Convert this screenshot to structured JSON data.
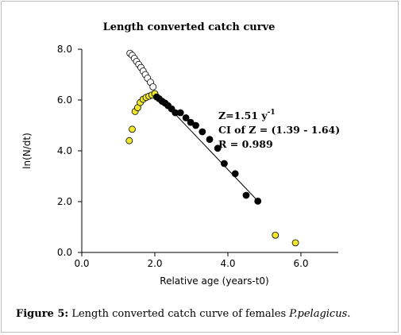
{
  "chart_data": {
    "type": "scatter",
    "title": "Length converted catch curve",
    "xlabel": "Relative age (years-t0)",
    "ylabel": "ln(N/dt)",
    "xlim": [
      0,
      7
    ],
    "ylim": [
      0,
      8
    ],
    "x_ticks": [
      "0.0",
      "2.0",
      "4.0",
      "6.0"
    ],
    "y_ticks": [
      "0.0",
      "2.0",
      "4.0",
      "6.0",
      "8.0"
    ],
    "grid": false,
    "series": [
      {
        "color": "#ffffff",
        "points": [
          [
            1.32,
            7.84
          ],
          [
            1.38,
            7.76
          ],
          [
            1.44,
            7.64
          ],
          [
            1.5,
            7.52
          ],
          [
            1.56,
            7.4
          ],
          [
            1.62,
            7.28
          ],
          [
            1.68,
            7.14
          ],
          [
            1.74,
            7.0
          ],
          [
            1.8,
            6.86
          ],
          [
            1.88,
            6.7
          ],
          [
            1.95,
            6.52
          ]
        ]
      },
      {
        "color": "#f0e62e",
        "points": [
          [
            1.3,
            4.4
          ],
          [
            1.38,
            4.85
          ],
          [
            1.46,
            5.55
          ],
          [
            1.53,
            5.7
          ],
          [
            1.6,
            5.9
          ],
          [
            1.68,
            6.03
          ],
          [
            1.76,
            6.1
          ],
          [
            1.84,
            6.15
          ],
          [
            1.92,
            6.2
          ],
          [
            2.0,
            6.25
          ],
          [
            5.3,
            0.68
          ],
          [
            5.85,
            0.38
          ]
        ]
      },
      {
        "color": "#000000",
        "points": [
          [
            2.05,
            6.12
          ],
          [
            2.12,
            6.05
          ],
          [
            2.2,
            5.95
          ],
          [
            2.28,
            5.88
          ],
          [
            2.36,
            5.78
          ],
          [
            2.46,
            5.65
          ],
          [
            2.56,
            5.5
          ],
          [
            2.7,
            5.5
          ],
          [
            2.85,
            5.3
          ],
          [
            2.98,
            5.12
          ],
          [
            3.12,
            5.0
          ],
          [
            3.3,
            4.75
          ],
          [
            3.5,
            4.45
          ],
          [
            3.72,
            4.1
          ],
          [
            3.9,
            3.5
          ],
          [
            4.2,
            3.1
          ],
          [
            4.5,
            2.25
          ],
          [
            4.82,
            2.02
          ]
        ]
      }
    ],
    "regression_line": {
      "x": [
        1.95,
        4.85
      ],
      "y": [
        6.36,
        1.98
      ]
    },
    "annotations": {
      "z_prefix": "Z=1.51 y",
      "z_exponent": "-1",
      "ci": "CI of Z  = (1.39 - 1.64)",
      "r": "R = 0.989"
    }
  },
  "caption": {
    "figure_label": "Figure 5:",
    "text": " Length converted catch curve of females ",
    "species": "P.pelagicus",
    "end": "."
  }
}
